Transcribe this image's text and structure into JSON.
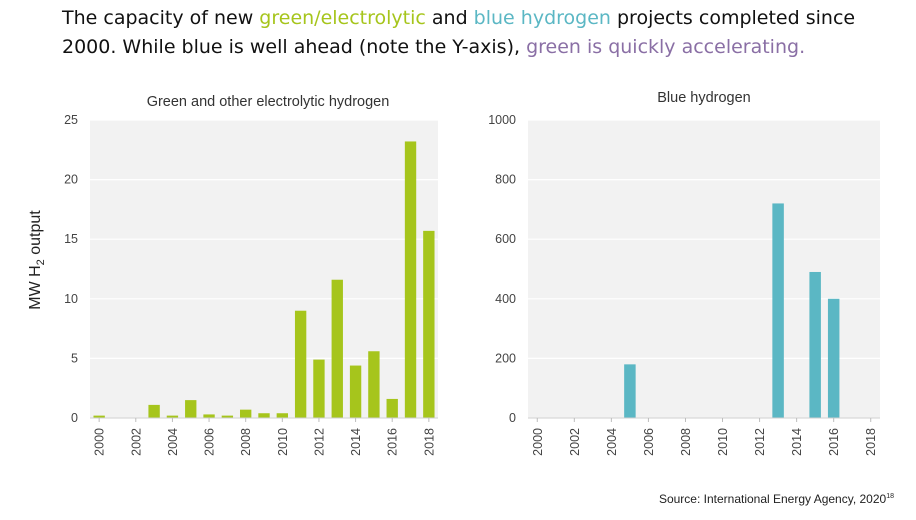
{
  "headline": {
    "p1": "The capacity of new ",
    "green_term": "green/electrolytic",
    "p2": " and ",
    "blue_term": "blue hydrogen",
    "p3": " projects completed since 2000. While blue is well ahead (note the Y-axis), ",
    "accent_term": "green is quickly accelerating.",
    "colors": {
      "green": "#a6c51c",
      "blue": "#5bb7c4",
      "accent": "#8a6fa5",
      "text": "#111111"
    }
  },
  "ylabel": {
    "main": "MW H",
    "sub": "2",
    "tail": " output"
  },
  "source": "Source: International Energy Agency, 2020",
  "source_sup": "18",
  "chart_data": [
    {
      "type": "bar",
      "title": "Green and other electrolytic hydrogen",
      "ylabel": "MW H2 output",
      "x": [
        2000,
        2001,
        2002,
        2003,
        2004,
        2005,
        2006,
        2007,
        2008,
        2009,
        2010,
        2011,
        2012,
        2013,
        2014,
        2015,
        2016,
        2017,
        2018
      ],
      "values": [
        0.2,
        0,
        0,
        1.1,
        0.2,
        1.5,
        0.3,
        0.2,
        0.7,
        0.4,
        0.4,
        9.0,
        4.9,
        11.6,
        4.4,
        5.6,
        1.6,
        23.2,
        15.7
      ],
      "xticks": [
        "2000",
        "2002",
        "2004",
        "2006",
        "2008",
        "2010",
        "2012",
        "2014",
        "2016",
        "2018"
      ],
      "ylim": [
        0,
        25
      ],
      "yticks": [
        "0",
        "5",
        "10",
        "15",
        "20",
        "25"
      ],
      "color": "#a6c51c",
      "grid": "horizontal"
    },
    {
      "type": "bar",
      "title": "Blue hydrogen",
      "x": [
        2000,
        2001,
        2002,
        2003,
        2004,
        2005,
        2006,
        2007,
        2008,
        2009,
        2010,
        2011,
        2012,
        2013,
        2014,
        2015,
        2016,
        2017,
        2018
      ],
      "values": [
        0,
        0,
        0,
        0,
        0,
        180,
        0,
        0,
        0,
        0,
        0,
        0,
        0,
        720,
        0,
        490,
        400,
        0,
        0
      ],
      "xticks": [
        "2000",
        "2002",
        "2004",
        "2006",
        "2008",
        "2010",
        "2012",
        "2014",
        "2016",
        "2018"
      ],
      "ylim": [
        0,
        1000
      ],
      "yticks": [
        "0",
        "200",
        "400",
        "600",
        "800",
        "1000"
      ],
      "color": "#5bb7c4",
      "grid": "horizontal"
    }
  ]
}
